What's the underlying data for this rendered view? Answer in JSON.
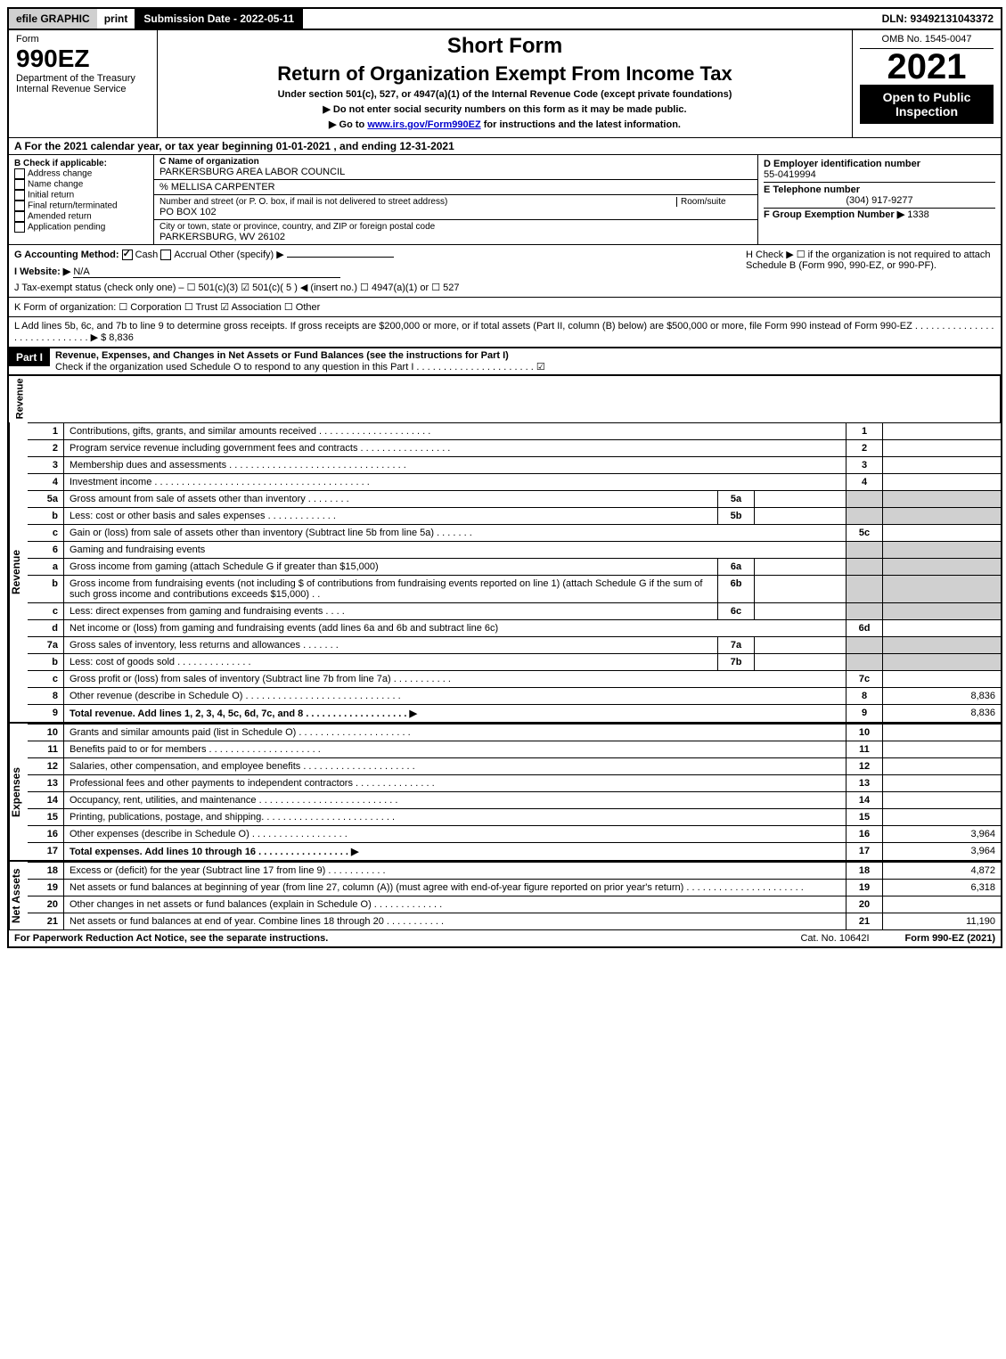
{
  "topbar": {
    "efile": "efile GRAPHIC",
    "print": "print",
    "subdate_label": "Submission Date - 2022-05-11",
    "dln": "DLN: 93492131043372"
  },
  "header": {
    "form_word": "Form",
    "form_no": "990EZ",
    "dept": "Department of the Treasury",
    "irs": "Internal Revenue Service",
    "short_form": "Short Form",
    "return_title": "Return of Organization Exempt From Income Tax",
    "under": "Under section 501(c), 527, or 4947(a)(1) of the Internal Revenue Code (except private foundations)",
    "ssn_warn": "▶ Do not enter social security numbers on this form as it may be made public.",
    "goto": "▶ Go to ",
    "goto_link": "www.irs.gov/Form990EZ",
    "goto_after": " for instructions and the latest information.",
    "omb": "OMB No. 1545-0047",
    "year": "2021",
    "open": "Open to Public Inspection"
  },
  "sectionA": "A  For the 2021 calendar year, or tax year beginning 01-01-2021 , and ending 12-31-2021",
  "sectionB": {
    "title": "B  Check if applicable:",
    "items": [
      "Address change",
      "Name change",
      "Initial return",
      "Final return/terminated",
      "Amended return",
      "Application pending"
    ]
  },
  "sectionC": {
    "label": "C Name of organization",
    "name": "PARKERSBURG AREA LABOR COUNCIL",
    "care_of": "% MELLISA CARPENTER",
    "street_label": "Number and street (or P. O. box, if mail is not delivered to street address)",
    "room_label": "Room/suite",
    "street": "PO BOX 102",
    "city_label": "City or town, state or province, country, and ZIP or foreign postal code",
    "city": "PARKERSBURG, WV  26102"
  },
  "sectionD": {
    "label": "D Employer identification number",
    "ein": "55-0419994",
    "tel_label": "E Telephone number",
    "tel": "(304) 917-9277",
    "group_label": "F Group Exemption Number  ▶",
    "group": "1338"
  },
  "sectionG": {
    "label": "G Accounting Method:",
    "cash": "Cash",
    "accrual": "Accrual",
    "other": "Other (specify) ▶",
    "hcheck": "H  Check ▶ ☐ if the organization is not required to attach Schedule B (Form 990, 990-EZ, or 990-PF)."
  },
  "sectionI": {
    "label": "I Website: ▶",
    "value": "N/A"
  },
  "sectionJ": "J Tax-exempt status (check only one) – ☐ 501(c)(3)  ☑ 501(c)( 5 ) ◀ (insert no.)  ☐ 4947(a)(1) or  ☐ 527",
  "sectionK": "K Form of organization:  ☐ Corporation  ☐ Trust  ☑ Association  ☐ Other",
  "sectionL": {
    "text": "L Add lines 5b, 6c, and 7b to line 9 to determine gross receipts. If gross receipts are $200,000 or more, or if total assets (Part II, column (B) below) are $500,000 or more, file Form 990 instead of Form 990-EZ . . . . . . . . . . . . . . . . . . . . . . . . . . . . . ▶ $",
    "amount": "8,836"
  },
  "part1": {
    "header": "Part I",
    "title": "Revenue, Expenses, and Changes in Net Assets or Fund Balances (see the instructions for Part I)",
    "subtitle": "Check if the organization used Schedule O to respond to any question in this Part I . . . . . . . . . . . . . . . . . . . . . . ☑"
  },
  "side_labels": {
    "revenue": "Revenue",
    "expenses": "Expenses",
    "netassets": "Net Assets"
  },
  "revenue_lines": [
    {
      "n": "1",
      "desc": "Contributions, gifts, grants, and similar amounts received . . . . . . . . . . . . . . . . . . . . .",
      "rn": "1",
      "rv": ""
    },
    {
      "n": "2",
      "desc": "Program service revenue including government fees and contracts . . . . . . . . . . . . . . . . .",
      "rn": "2",
      "rv": ""
    },
    {
      "n": "3",
      "desc": "Membership dues and assessments . . . . . . . . . . . . . . . . . . . . . . . . . . . . . . . . .",
      "rn": "3",
      "rv": ""
    },
    {
      "n": "4",
      "desc": "Investment income . . . . . . . . . . . . . . . . . . . . . . . . . . . . . . . . . . . . . . . .",
      "rn": "4",
      "rv": ""
    },
    {
      "n": "5a",
      "desc": "Gross amount from sale of assets other than inventory . . . . . . . .",
      "mn": "5a",
      "mv": "",
      "shade": true
    },
    {
      "n": "b",
      "desc": "Less: cost or other basis and sales expenses . . . . . . . . . . . . .",
      "mn": "5b",
      "mv": "",
      "shade": true
    },
    {
      "n": "c",
      "desc": "Gain or (loss) from sale of assets other than inventory (Subtract line 5b from line 5a) . . . . . . .",
      "rn": "5c",
      "rv": ""
    },
    {
      "n": "6",
      "desc": "Gaming and fundraising events",
      "shade": true,
      "noright": true
    },
    {
      "n": "a",
      "desc": "Gross income from gaming (attach Schedule G if greater than $15,000)",
      "mn": "6a",
      "mv": "",
      "shade": true
    },
    {
      "n": "b",
      "desc": "Gross income from fundraising events (not including $                    of contributions from fundraising events reported on line 1) (attach Schedule G if the sum of such gross income and contributions exceeds $15,000)  .  .",
      "mn": "6b",
      "mv": "",
      "shade": true
    },
    {
      "n": "c",
      "desc": "Less: direct expenses from gaming and fundraising events  .  .  .  .",
      "mn": "6c",
      "mv": "",
      "shade": true
    },
    {
      "n": "d",
      "desc": "Net income or (loss) from gaming and fundraising events (add lines 6a and 6b and subtract line 6c)",
      "rn": "6d",
      "rv": ""
    },
    {
      "n": "7a",
      "desc": "Gross sales of inventory, less returns and allowances . . . . . . .",
      "mn": "7a",
      "mv": "",
      "shade": true
    },
    {
      "n": "b",
      "desc": "Less: cost of goods sold      .  .  .  .  .  .  .  .  .  .  .  .  .  .",
      "mn": "7b",
      "mv": "",
      "shade": true
    },
    {
      "n": "c",
      "desc": "Gross profit or (loss) from sales of inventory (Subtract line 7b from line 7a) . . . . . . . . . . .",
      "rn": "7c",
      "rv": ""
    },
    {
      "n": "8",
      "desc": "Other revenue (describe in Schedule O) . . . . . . . . . . . . . . . . . . . . . . . . . . . . .",
      "rn": "8",
      "rv": "8,836"
    },
    {
      "n": "9",
      "desc": "Total revenue. Add lines 1, 2, 3, 4, 5c, 6d, 7c, and 8  . . . . . . . . . . . . . . . . . . .  ▶",
      "rn": "9",
      "rv": "8,836",
      "bold": true
    }
  ],
  "expense_lines": [
    {
      "n": "10",
      "desc": "Grants and similar amounts paid (list in Schedule O) . . . . . . . . . . . . . . . . . . . . .",
      "rn": "10",
      "rv": ""
    },
    {
      "n": "11",
      "desc": "Benefits paid to or for members    .  .  .  .  .  .  .  .  .  .  .  .  .  .  .  .  .  .  .  .  .",
      "rn": "11",
      "rv": ""
    },
    {
      "n": "12",
      "desc": "Salaries, other compensation, and employee benefits . . . . . . . . . . . . . . . . . . . . .",
      "rn": "12",
      "rv": ""
    },
    {
      "n": "13",
      "desc": "Professional fees and other payments to independent contractors . . . . . . . . . . . . . . .",
      "rn": "13",
      "rv": ""
    },
    {
      "n": "14",
      "desc": "Occupancy, rent, utilities, and maintenance . . . . . . . . . . . . . . . . . . . . . . . . . .",
      "rn": "14",
      "rv": ""
    },
    {
      "n": "15",
      "desc": "Printing, publications, postage, and shipping. . . . . . . . . . . . . . . . . . . . . . . . .",
      "rn": "15",
      "rv": ""
    },
    {
      "n": "16",
      "desc": "Other expenses (describe in Schedule O)    .  .  .  .  .  .  .  .  .  .  .  .  .  .  .  .  .  .",
      "rn": "16",
      "rv": "3,964"
    },
    {
      "n": "17",
      "desc": "Total expenses. Add lines 10 through 16     .  .  .  .  .  .  .  .  .  .  .  .  .  .  .  .  .  ▶",
      "rn": "17",
      "rv": "3,964",
      "bold": true
    }
  ],
  "netasset_lines": [
    {
      "n": "18",
      "desc": "Excess or (deficit) for the year (Subtract line 17 from line 9)        .  .  .  .  .  .  .  .  .  .  .",
      "rn": "18",
      "rv": "4,872"
    },
    {
      "n": "19",
      "desc": "Net assets or fund balances at beginning of year (from line 27, column (A)) (must agree with end-of-year figure reported on prior year's return) . . . . . . . . . . . . . . . . . . . . . .",
      "rn": "19",
      "rv": "6,318"
    },
    {
      "n": "20",
      "desc": "Other changes in net assets or fund balances (explain in Schedule O) . . . . . . . . . . . . .",
      "rn": "20",
      "rv": ""
    },
    {
      "n": "21",
      "desc": "Net assets or fund balances at end of year. Combine lines 18 through 20 . . . . . . . . . . .",
      "rn": "21",
      "rv": "11,190"
    }
  ],
  "footer": {
    "paperwork": "For Paperwork Reduction Act Notice, see the separate instructions.",
    "cat": "Cat. No. 10642I",
    "form": "Form 990-EZ (2021)"
  },
  "colors": {
    "black": "#000000",
    "white": "#ffffff",
    "shade": "#d0d0d0",
    "link": "#0000cc"
  }
}
